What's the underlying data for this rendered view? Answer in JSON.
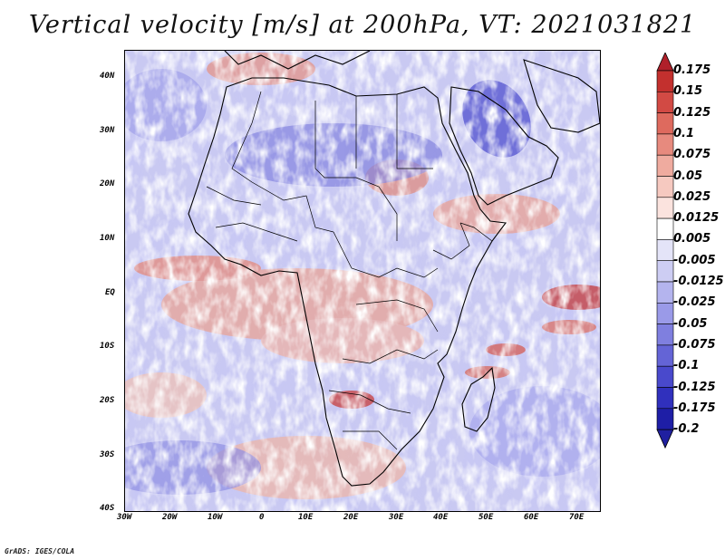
{
  "title": "Vertical velocity [m/s] at 200hPa, VT: 2021031821",
  "credit": "GrADS: IGES/COLA",
  "map": {
    "lon_range": [
      -30,
      75
    ],
    "lat_range": [
      -40,
      45
    ],
    "lon_ticks": [
      "30W",
      "20W",
      "10W",
      "0",
      "10E",
      "20E",
      "30E",
      "40E",
      "50E",
      "60E",
      "70E"
    ],
    "lat_ticks": [
      "40N",
      "30N",
      "20N",
      "10N",
      "EQ",
      "10S",
      "20S",
      "30S",
      "40S"
    ]
  },
  "colorbar": {
    "levels": [
      "0.175",
      "0.15",
      "0.125",
      "0.1",
      "0.075",
      "0.05",
      "0.025",
      "0.0125",
      "0.005",
      "-0.005",
      "-0.0125",
      "-0.025",
      "-0.05",
      "-0.075",
      "-0.1",
      "-0.125",
      "-0.175",
      "-0.2"
    ],
    "colors": [
      "#b0202a",
      "#c3302e",
      "#d24a44",
      "#de6a5e",
      "#e78a7e",
      "#efab9f",
      "#f6c9c0",
      "#fbe3de",
      "#ffffff",
      "#e4e4f8",
      "#cdcdf3",
      "#b4b4ee",
      "#9a9ae8",
      "#7f7fdf",
      "#6464d6",
      "#4949cc",
      "#3030bd",
      "#1e1ea6",
      "#2020a0"
    ]
  }
}
